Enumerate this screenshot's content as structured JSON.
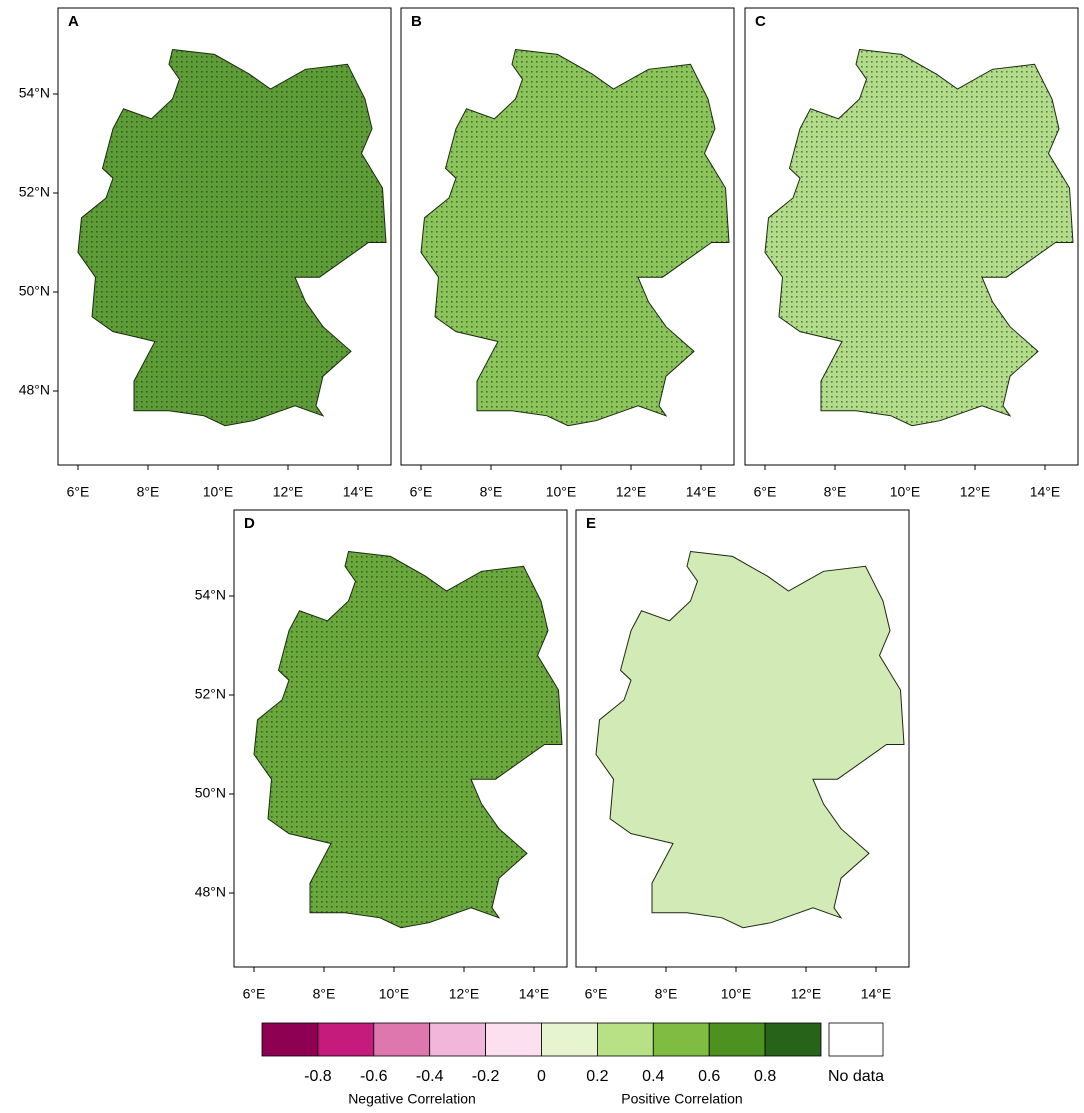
{
  "panels": [
    {
      "label": "A",
      "lat_labels": [
        "54°N",
        "52°N",
        "50°N",
        "48°N"
      ],
      "lon_labels": [
        "6°E",
        "8°E",
        "10°E",
        "12°E",
        "14°E"
      ]
    },
    {
      "label": "B",
      "lon_labels": [
        "6°E",
        "8°E",
        "10°E",
        "12°E",
        "14°E"
      ]
    },
    {
      "label": "C",
      "lon_labels": [
        "6°E",
        "8°E",
        "10°E",
        "12°E",
        "14°E"
      ]
    },
    {
      "label": "D",
      "lat_labels": [
        "54°N",
        "52°N",
        "50°N",
        "48°N"
      ],
      "lon_labels": [
        "6°E",
        "8°E",
        "10°E",
        "12°E",
        "14°E"
      ]
    },
    {
      "label": "E",
      "lon_labels": [
        "6°E",
        "8°E",
        "10°E",
        "12°E",
        "14°E"
      ]
    }
  ],
  "legend": {
    "colors": [
      "#8e0152",
      "#c51b7d",
      "#de77ae",
      "#f1b6da",
      "#fde0ef",
      "#e6f5d0",
      "#b8e186",
      "#7fbc41",
      "#4d9221",
      "#276419"
    ],
    "tick_labels": [
      "-0.8",
      "-0.6",
      "-0.4",
      "-0.2",
      "0",
      "0.2",
      "0.4",
      "0.6",
      "0.8"
    ],
    "no_data": "No data",
    "negative_caption": "Negative Correlation",
    "positive_caption": "Positive Correlation"
  }
}
